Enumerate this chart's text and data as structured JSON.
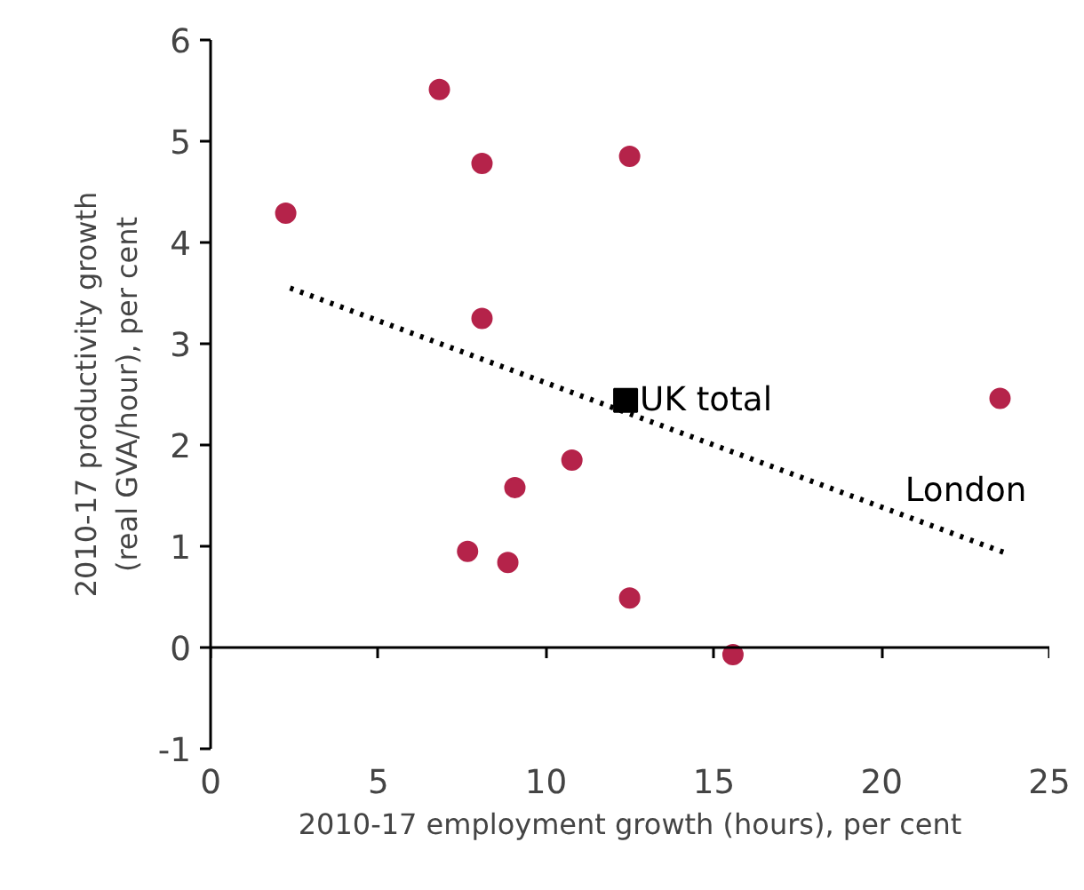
{
  "chart_data": {
    "type": "scatter",
    "xlabel": "2010-17 employment growth (hours), per cent",
    "ylabel": "2010-17 productivity growth\n(real GVA/hour), per cent",
    "xlim": [
      0,
      25
    ],
    "ylim": [
      -1,
      6
    ],
    "xticks": [
      0,
      5,
      10,
      15,
      20,
      25
    ],
    "yticks": [
      -1,
      0,
      1,
      2,
      3,
      4,
      5,
      6
    ],
    "series": [
      {
        "marker": "circle",
        "color": "#b5234a",
        "x": [
          2.24,
          6.82,
          8.09,
          12.49,
          8.09,
          10.77,
          9.07,
          7.66,
          8.86,
          12.49,
          15.57
        ],
        "values": [
          4.29,
          5.51,
          4.78,
          4.85,
          3.25,
          1.85,
          1.58,
          0.95,
          0.84,
          0.49,
          -0.07
        ]
      },
      {
        "marker": "circle",
        "name": "London",
        "color": "#b5234a",
        "x": [
          23.53
        ],
        "values": [
          2.46
        ]
      },
      {
        "marker": "square",
        "name": "UK total",
        "color": "#000000",
        "x": [
          12.37
        ],
        "values": [
          2.44
        ]
      },
      {
        "type": "line",
        "line_style": "dotted",
        "color": "#000000",
        "x": [
          2.37,
          23.64
        ],
        "values": [
          3.55,
          0.94
        ]
      }
    ]
  }
}
